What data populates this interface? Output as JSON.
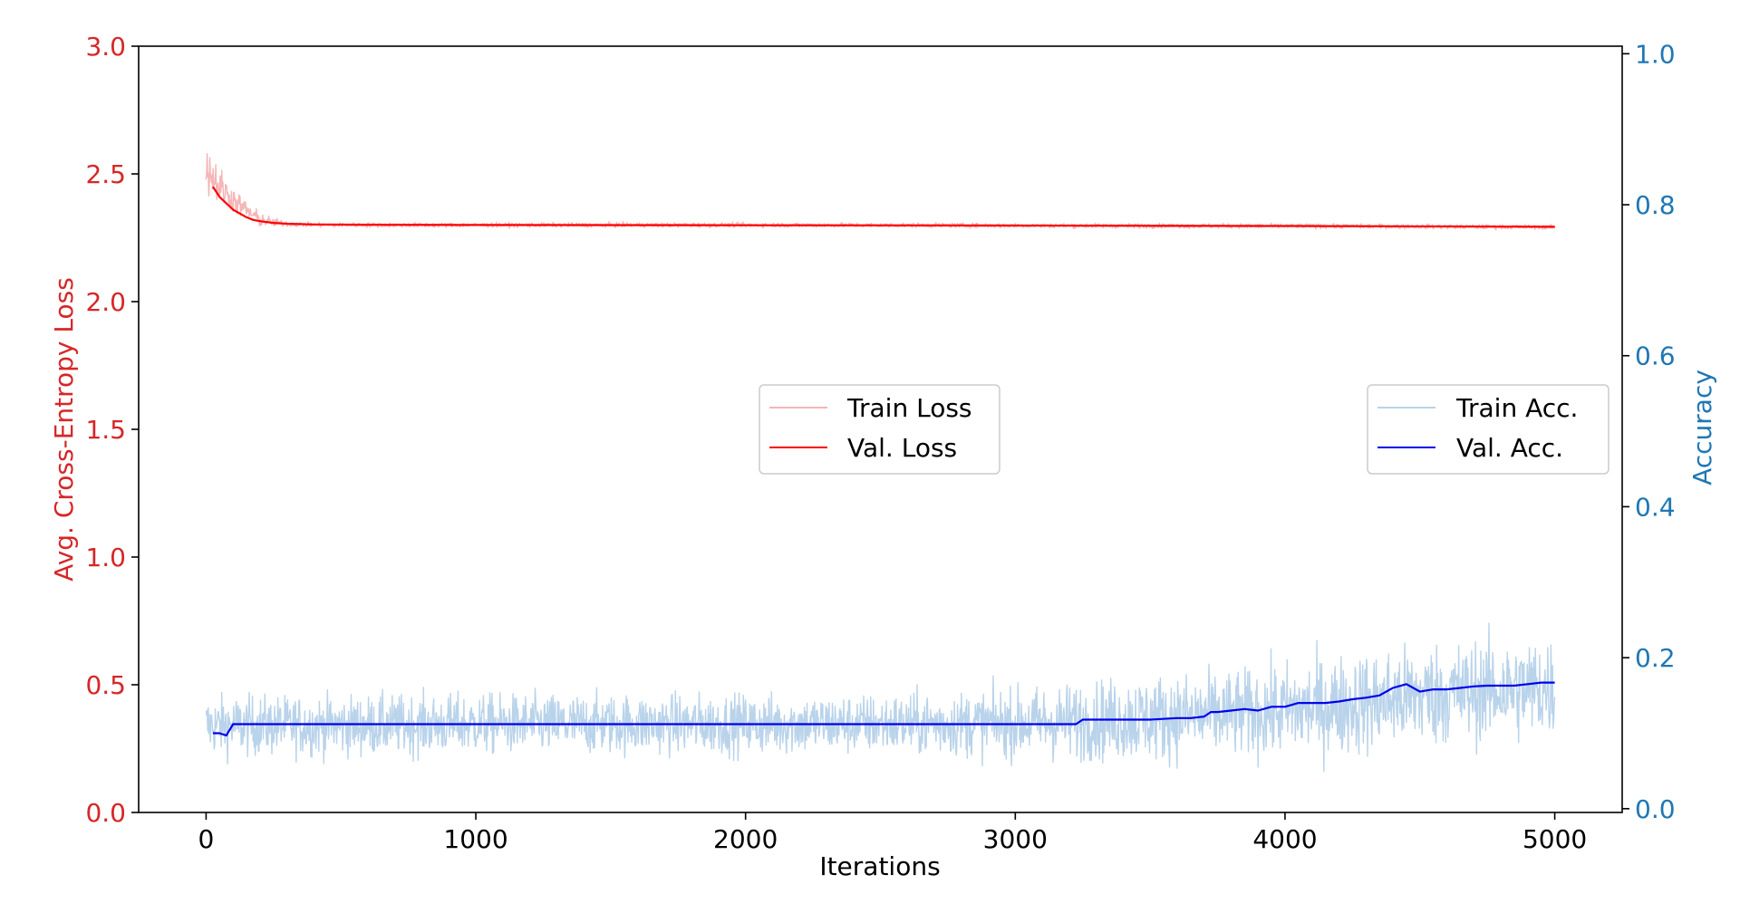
{
  "chart_data": {
    "type": "line",
    "xlabel": "Iterations",
    "ylabel_left": "Avg. Cross-Entropy Loss",
    "ylabel_right": "Accuracy",
    "xlim": [
      -250,
      5250
    ],
    "ylim_left": [
      0,
      3.0
    ],
    "ylim_right": [
      -0.005,
      1.01
    ],
    "x_ticks": [
      "0",
      "1000",
      "2000",
      "3000",
      "4000",
      "5000"
    ],
    "y_left_ticks": [
      "0.0",
      "0.5",
      "1.0",
      "1.5",
      "2.0",
      "2.5",
      "3.0"
    ],
    "y_right_ticks": [
      "0.0",
      "0.2",
      "0.4",
      "0.6",
      "0.8",
      "1.0"
    ],
    "colors": {
      "left_axis": "#d62728",
      "right_axis": "#1f77b4",
      "train_loss": "#f4b6b6",
      "val_loss": "#ff0000",
      "train_acc": "#b9d3ea",
      "val_acc": "#0000ee"
    },
    "grid": false,
    "legends": [
      {
        "position": "center",
        "entries": [
          "Train Loss",
          "Val. Loss"
        ]
      },
      {
        "position": "center-right",
        "entries": [
          "Train Acc.",
          "Val. Acc."
        ]
      }
    ],
    "series": [
      {
        "name": "Train Loss",
        "axis": "left",
        "style": "noisy",
        "x": [
          0,
          20,
          50,
          80,
          120,
          160,
          200,
          250,
          300,
          400,
          600,
          1000,
          2000,
          3000,
          4000,
          5000
        ],
        "y": [
          2.52,
          2.5,
          2.45,
          2.42,
          2.38,
          2.35,
          2.32,
          2.31,
          2.305,
          2.3,
          2.3,
          2.3,
          2.3,
          2.298,
          2.296,
          2.292
        ],
        "noise": [
          0.08,
          0.08,
          0.07,
          0.05,
          0.04,
          0.03,
          0.025,
          0.015,
          0.01,
          0.008,
          0.008,
          0.008,
          0.008,
          0.008,
          0.008,
          0.008
        ]
      },
      {
        "name": "Val. Loss",
        "axis": "left",
        "x": [
          25,
          50,
          75,
          100,
          125,
          150,
          175,
          200,
          250,
          300,
          400,
          600,
          1000,
          2000,
          3000,
          4000,
          5000
        ],
        "y": [
          2.45,
          2.41,
          2.385,
          2.36,
          2.345,
          2.33,
          2.32,
          2.315,
          2.308,
          2.305,
          2.302,
          2.301,
          2.3,
          2.299,
          2.298,
          2.296,
          2.293
        ]
      },
      {
        "name": "Train Acc.",
        "axis": "right",
        "style": "noisy",
        "x": [
          0,
          500,
          1000,
          1500,
          2000,
          2500,
          3000,
          3200,
          3500,
          3800,
          4000,
          4300,
          4500,
          4700,
          5000
        ],
        "y": [
          0.11,
          0.11,
          0.112,
          0.112,
          0.112,
          0.112,
          0.113,
          0.115,
          0.12,
          0.125,
          0.13,
          0.14,
          0.15,
          0.155,
          0.16
        ],
        "noise": [
          0.035,
          0.035,
          0.035,
          0.035,
          0.035,
          0.035,
          0.04,
          0.045,
          0.05,
          0.05,
          0.055,
          0.06,
          0.06,
          0.06,
          0.06
        ]
      },
      {
        "name": "Val. Acc.",
        "axis": "right",
        "x": [
          25,
          50,
          75,
          100,
          150,
          3200,
          3225,
          3250,
          3300,
          3350,
          3400,
          3500,
          3600,
          3650,
          3700,
          3725,
          3750,
          3800,
          3850,
          3900,
          3950,
          4000,
          4050,
          4100,
          4150,
          4200,
          4250,
          4300,
          4350,
          4400,
          4450,
          4500,
          4550,
          4600,
          4650,
          4700,
          4750,
          4800,
          4850,
          4900,
          4950,
          5000
        ],
        "y": [
          0.1,
          0.1,
          0.097,
          0.112,
          0.112,
          0.112,
          0.112,
          0.118,
          0.118,
          0.118,
          0.118,
          0.118,
          0.12,
          0.12,
          0.122,
          0.128,
          0.128,
          0.13,
          0.132,
          0.13,
          0.135,
          0.135,
          0.14,
          0.14,
          0.14,
          0.142,
          0.145,
          0.147,
          0.15,
          0.16,
          0.165,
          0.155,
          0.158,
          0.158,
          0.16,
          0.162,
          0.163,
          0.163,
          0.163,
          0.165,
          0.167,
          0.167
        ]
      }
    ]
  }
}
